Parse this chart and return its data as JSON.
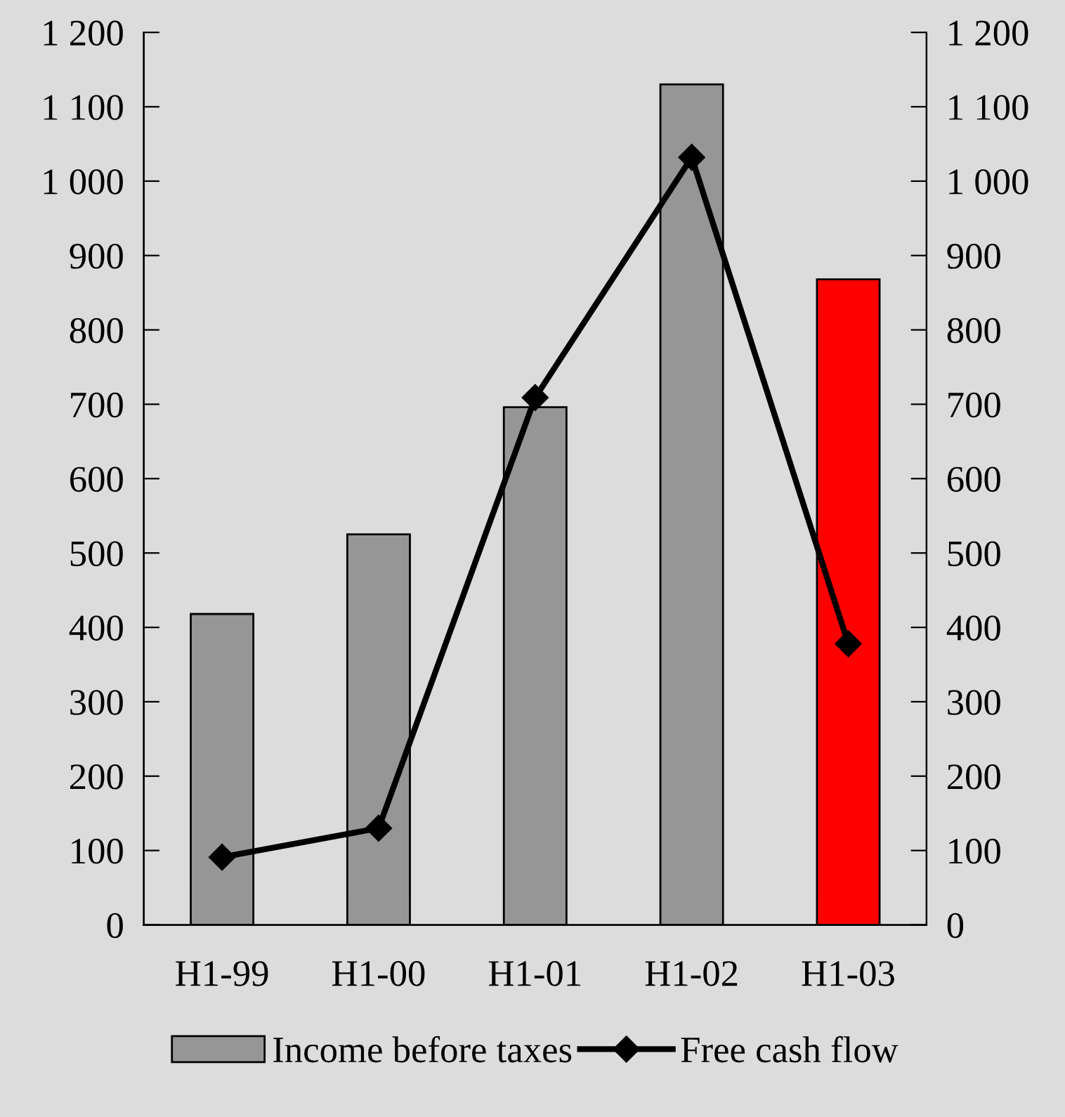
{
  "chart_data": {
    "type": "bar",
    "categories": [
      "H1-99",
      "H1-00",
      "H1-01",
      "H1-02",
      "H1-03"
    ],
    "series": [
      {
        "name": "Income before taxes",
        "color": "#969696",
        "colors": [
          "#969696",
          "#969696",
          "#969696",
          "#969696",
          "#ff0000"
        ],
        "values": [
          418,
          525,
          696,
          1130,
          868
        ]
      },
      {
        "name": "Free cash flow",
        "type": "line",
        "color": "#000000",
        "marker": "diamond",
        "values": [
          91,
          130,
          709,
          1032,
          378
        ]
      }
    ],
    "ylim": [
      0,
      1200
    ],
    "yticks": [
      0,
      100,
      200,
      300,
      400,
      500,
      600,
      700,
      800,
      900,
      {
        "value": 1000,
        "label": "1 000"
      },
      {
        "value": 1100,
        "label": "1 100"
      },
      {
        "value": 1200,
        "label": "1 200"
      }
    ],
    "y2lim": [
      0,
      1200
    ],
    "y2ticks": [
      0,
      100,
      200,
      300,
      400,
      500,
      600,
      700,
      800,
      900,
      {
        "value": 1000,
        "label": "1 000"
      },
      {
        "value": 1100,
        "label": "1 100"
      },
      {
        "value": 1200,
        "label": "1 200"
      }
    ],
    "grid": false,
    "legend": "bottom"
  }
}
